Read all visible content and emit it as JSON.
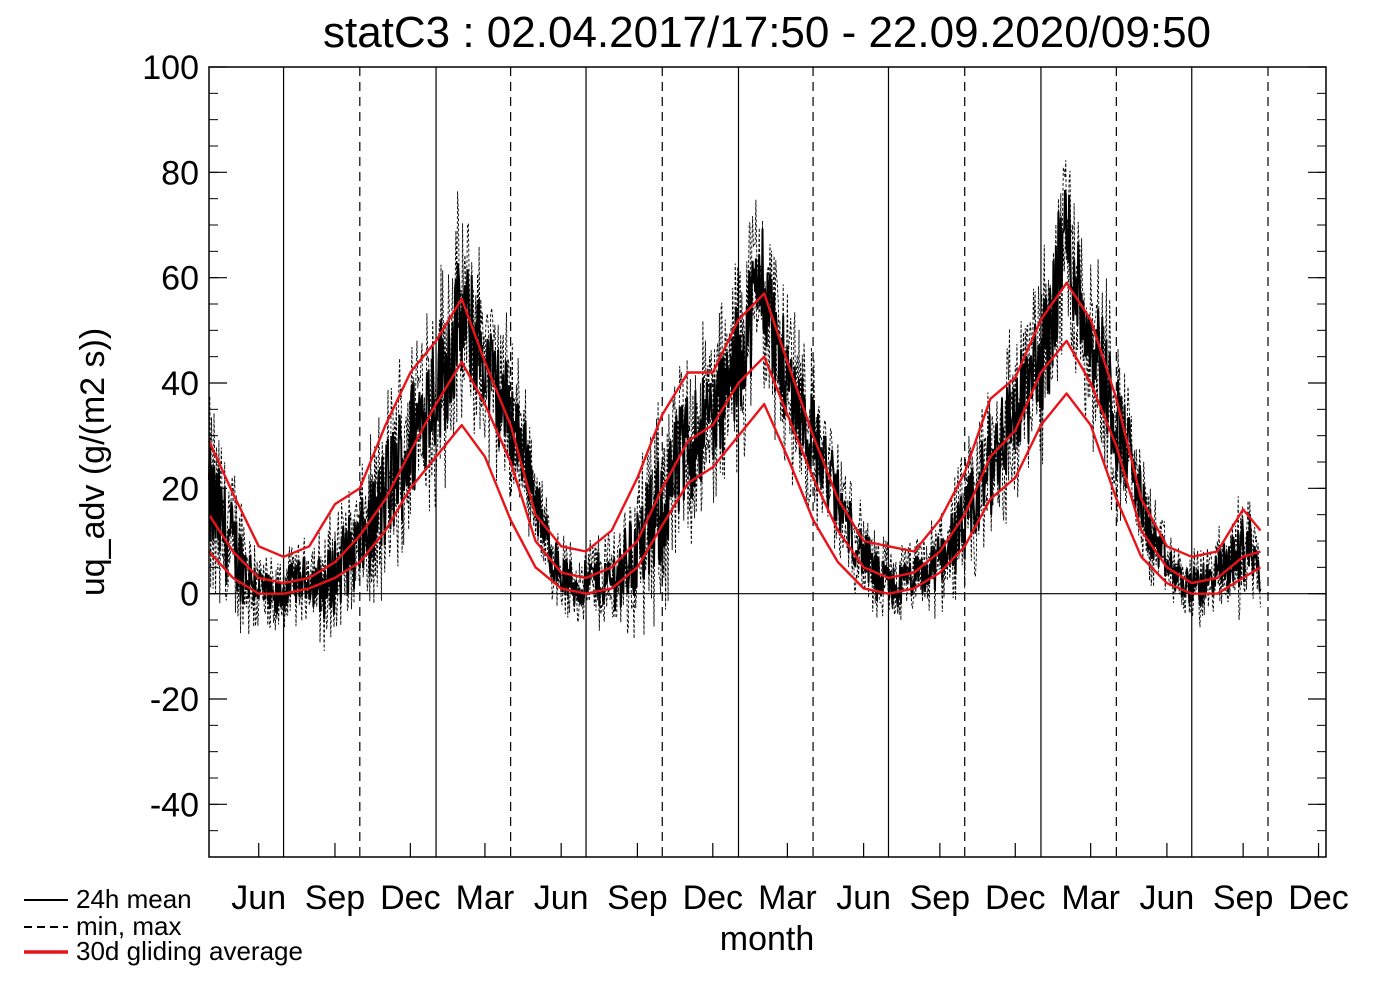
{
  "chart_data": {
    "type": "line",
    "title": "statC3 : 02.04.2017/17:50 - 22.09.2020/09:50",
    "xlabel": "month",
    "ylabel": "uq_adv (g/(m2 s))",
    "ylim": [
      -50,
      100
    ],
    "yticks": [
      100,
      80,
      60,
      40,
      20,
      0,
      -20,
      -40
    ],
    "xlim": [
      "2017-04-02",
      "2020-12-10"
    ],
    "x_ticks": [
      {
        "date": "2017-06-01",
        "label": "Jun"
      },
      {
        "date": "2017-09-01",
        "label": "Sep"
      },
      {
        "date": "2017-12-01",
        "label": "Dec"
      },
      {
        "date": "2018-03-01",
        "label": "Mar"
      },
      {
        "date": "2018-06-01",
        "label": "Jun"
      },
      {
        "date": "2018-09-01",
        "label": "Sep"
      },
      {
        "date": "2018-12-01",
        "label": "Dec"
      },
      {
        "date": "2019-03-01",
        "label": "Mar"
      },
      {
        "date": "2019-06-01",
        "label": "Jun"
      },
      {
        "date": "2019-09-01",
        "label": "Sep"
      },
      {
        "date": "2019-12-01",
        "label": "Dec"
      },
      {
        "date": "2020-03-01",
        "label": "Mar"
      },
      {
        "date": "2020-06-01",
        "label": "Jun"
      },
      {
        "date": "2020-09-01",
        "label": "Sep"
      },
      {
        "date": "2020-12-01",
        "label": "Dec"
      }
    ],
    "year_boundaries": [
      "2017-07-01",
      "2018-01-01",
      "2018-07-01",
      "2019-01-01",
      "2019-07-01",
      "2020-01-01",
      "2020-07-01"
    ],
    "season_markers": [
      "2017-10-01",
      "2018-04-01",
      "2018-10-01",
      "2019-04-01",
      "2019-10-01",
      "2020-04-01",
      "2020-10-01"
    ],
    "zero_line": 0,
    "legend": {
      "position": "bottom-left",
      "entries": [
        {
          "label": "24h mean",
          "style": "solid",
          "color": "#000000"
        },
        {
          "label": "min, max",
          "style": "dashed",
          "color": "#000000"
        },
        {
          "label": "30d gliding average",
          "style": "solid",
          "color": "#e8141a"
        }
      ]
    },
    "series": [
      {
        "name": "30d gliding average",
        "color": "#e8141a",
        "x": [
          "2017-04-02",
          "2017-05-01",
          "2017-06-01",
          "2017-07-01",
          "2017-08-01",
          "2017-09-01",
          "2017-10-01",
          "2017-11-01",
          "2017-12-01",
          "2018-01-01",
          "2018-02-01",
          "2018-03-01",
          "2018-04-01",
          "2018-05-01",
          "2018-06-01",
          "2018-07-01",
          "2018-08-01",
          "2018-09-01",
          "2018-10-01",
          "2018-11-01",
          "2018-12-01",
          "2019-01-01",
          "2019-02-01",
          "2019-03-01",
          "2019-04-01",
          "2019-05-01",
          "2019-06-01",
          "2019-07-01",
          "2019-08-01",
          "2019-09-01",
          "2019-10-01",
          "2019-11-01",
          "2019-12-01",
          "2020-01-01",
          "2020-02-01",
          "2020-03-01",
          "2020-04-01",
          "2020-05-01",
          "2020-06-01",
          "2020-07-01",
          "2020-08-01",
          "2020-09-01",
          "2020-09-22"
        ],
        "values": [
          15,
          8,
          3,
          2,
          3,
          6,
          11,
          18,
          27,
          36,
          44,
          36,
          25,
          10,
          4,
          3,
          5,
          10,
          20,
          29,
          32,
          40,
          45,
          34,
          22,
          12,
          5,
          3,
          4,
          8,
          15,
          26,
          31,
          42,
          48,
          40,
          28,
          12,
          5,
          2,
          3,
          7,
          8
        ]
      },
      {
        "name": "30d gliding average upper",
        "color": "#e8141a",
        "x": [
          "2017-04-02",
          "2017-05-01",
          "2017-06-01",
          "2017-07-01",
          "2017-08-01",
          "2017-09-01",
          "2017-10-01",
          "2017-11-01",
          "2017-12-01",
          "2018-01-01",
          "2018-02-01",
          "2018-03-01",
          "2018-04-01",
          "2018-05-01",
          "2018-06-01",
          "2018-07-01",
          "2018-08-01",
          "2018-09-01",
          "2018-10-01",
          "2018-11-01",
          "2018-12-01",
          "2019-01-01",
          "2019-02-01",
          "2019-03-01",
          "2019-04-01",
          "2019-05-01",
          "2019-06-01",
          "2019-07-01",
          "2019-08-01",
          "2019-09-01",
          "2019-10-01",
          "2019-11-01",
          "2019-12-01",
          "2020-01-01",
          "2020-02-01",
          "2020-03-01",
          "2020-04-01",
          "2020-05-01",
          "2020-06-01",
          "2020-07-01",
          "2020-08-01",
          "2020-09-01",
          "2020-09-22"
        ],
        "values": [
          29,
          19,
          9,
          7,
          9,
          17,
          20,
          32,
          42,
          48,
          56,
          44,
          32,
          15,
          9,
          8,
          12,
          22,
          34,
          42,
          42,
          52,
          57,
          44,
          30,
          18,
          10,
          9,
          8,
          14,
          23,
          37,
          41,
          52,
          59,
          52,
          37,
          18,
          9,
          7,
          8,
          16,
          12
        ]
      },
      {
        "name": "30d gliding average lower",
        "color": "#e8141a",
        "x": [
          "2017-04-02",
          "2017-05-01",
          "2017-06-01",
          "2017-07-01",
          "2017-08-01",
          "2017-09-01",
          "2017-10-01",
          "2017-11-01",
          "2017-12-01",
          "2018-01-01",
          "2018-02-01",
          "2018-03-01",
          "2018-04-01",
          "2018-05-01",
          "2018-06-01",
          "2018-07-01",
          "2018-08-01",
          "2018-09-01",
          "2018-10-01",
          "2018-11-01",
          "2018-12-01",
          "2019-01-01",
          "2019-02-01",
          "2019-03-01",
          "2019-04-01",
          "2019-05-01",
          "2019-06-01",
          "2019-07-01",
          "2019-08-01",
          "2019-09-01",
          "2019-10-01",
          "2019-11-01",
          "2019-12-01",
          "2020-01-01",
          "2020-02-01",
          "2020-03-01",
          "2020-04-01",
          "2020-05-01",
          "2020-06-01",
          "2020-07-01",
          "2020-08-01",
          "2020-09-01",
          "2020-09-22"
        ],
        "values": [
          8,
          3,
          0,
          0,
          1,
          3,
          6,
          12,
          20,
          26,
          32,
          26,
          14,
          5,
          1,
          0,
          1,
          5,
          13,
          21,
          24,
          30,
          36,
          26,
          14,
          6,
          1,
          0,
          1,
          4,
          9,
          18,
          22,
          32,
          38,
          32,
          18,
          7,
          2,
          0,
          0,
          3,
          5
        ]
      },
      {
        "name": "24h mean",
        "color": "#000000",
        "x": [
          "2017-04-02",
          "2017-04-20",
          "2017-05-10",
          "2017-05-30",
          "2017-06-20",
          "2017-07-10",
          "2017-07-30",
          "2017-08-20",
          "2017-09-10",
          "2017-09-30",
          "2017-10-20",
          "2017-11-10",
          "2017-11-30",
          "2017-12-20",
          "2018-01-10",
          "2018-01-30",
          "2018-02-20",
          "2018-03-10",
          "2018-03-30",
          "2018-04-20",
          "2018-05-10",
          "2018-05-30",
          "2018-06-20",
          "2018-07-10",
          "2018-07-30",
          "2018-08-20",
          "2018-09-10",
          "2018-09-30",
          "2018-10-20",
          "2018-11-10",
          "2018-11-30",
          "2018-12-20",
          "2019-01-10",
          "2019-01-30",
          "2019-02-20",
          "2019-03-10",
          "2019-03-30",
          "2019-04-20",
          "2019-05-10",
          "2019-05-30",
          "2019-06-20",
          "2019-07-10",
          "2019-07-30",
          "2019-08-20",
          "2019-09-10",
          "2019-09-30",
          "2019-10-20",
          "2019-11-10",
          "2019-11-30",
          "2019-12-20",
          "2020-01-10",
          "2020-01-30",
          "2020-02-20",
          "2020-03-10",
          "2020-03-30",
          "2020-04-20",
          "2020-05-10",
          "2020-05-30",
          "2020-06-20",
          "2020-07-10",
          "2020-07-30",
          "2020-08-20",
          "2020-09-10",
          "2020-09-22"
        ],
        "values": [
          18,
          12,
          6,
          2,
          -2,
          2,
          3,
          1,
          6,
          9,
          14,
          22,
          28,
          36,
          42,
          52,
          48,
          40,
          34,
          26,
          12,
          4,
          1,
          3,
          2,
          6,
          10,
          16,
          24,
          30,
          34,
          38,
          50,
          60,
          44,
          38,
          30,
          22,
          14,
          8,
          2,
          1,
          3,
          4,
          9,
          12,
          20,
          28,
          34,
          40,
          48,
          70,
          54,
          46,
          34,
          24,
          12,
          6,
          2,
          1,
          4,
          6,
          10,
          2
        ]
      }
    ]
  }
}
